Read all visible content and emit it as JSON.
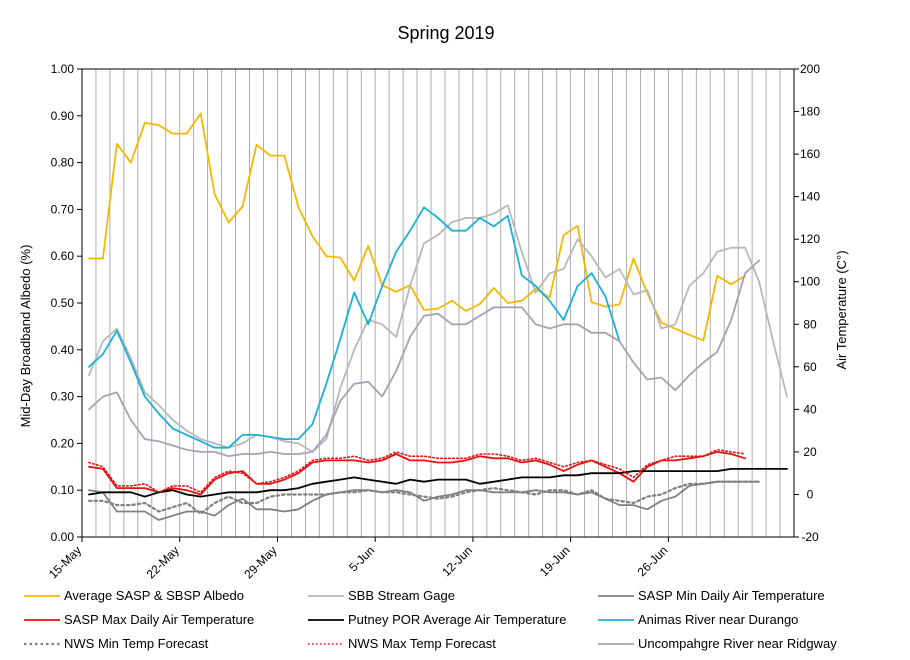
{
  "chart_data": {
    "type": "line",
    "title": "Spring 2019",
    "ylabel_left": "Mid-Day Broadband Albedo (%)",
    "ylabel_right": "Air Temperature (C°)",
    "ylim_left": [
      0,
      1
    ],
    "ylim_right": [
      -20,
      200
    ],
    "yticks_left": [
      "0.00",
      "0.10",
      "0.20",
      "0.30",
      "0.40",
      "0.50",
      "0.60",
      "0.70",
      "0.80",
      "0.90",
      "1.00"
    ],
    "yticks_right": [
      "-20",
      "0",
      "20",
      "40",
      "60",
      "80",
      "100",
      "120",
      "140",
      "160",
      "180",
      "200"
    ],
    "x_start": "15-May",
    "x_days": 51,
    "xtick_labels": [
      "15-May",
      "22-May",
      "29-May",
      "5-Jun",
      "12-Jun",
      "19-Jun",
      "26-Jun"
    ],
    "grid": "vertical",
    "legend_position": "bottom",
    "series": [
      {
        "name": "Average SASP & SBSP Albedo",
        "axis": "left",
        "color": "#f5b800",
        "style": "solid",
        "width": 1.8,
        "values": [
          0.595,
          0.595,
          0.84,
          0.8,
          0.885,
          0.88,
          0.862,
          0.862,
          0.905,
          0.733,
          0.672,
          0.706,
          0.838,
          0.815,
          0.815,
          0.705,
          0.643,
          0.6,
          0.597,
          0.548,
          0.622,
          0.538,
          0.524,
          0.538,
          0.485,
          0.488,
          0.505,
          0.483,
          0.498,
          0.532,
          0.5,
          0.505,
          0.53,
          0.512,
          0.645,
          0.665,
          0.502,
          0.492,
          0.497,
          0.595,
          0.52,
          0.458,
          0.445,
          0.432,
          0.42,
          0.558,
          0.54,
          0.558,
          null,
          null,
          null
        ]
      },
      {
        "name": "SBB Stream Gage",
        "axis": "right",
        "color": "#b8b8b8",
        "style": "solid",
        "width": 1.8,
        "values": [
          56,
          72,
          78,
          64,
          48,
          42,
          35,
          30,
          26,
          24,
          22,
          24,
          28,
          27,
          25,
          24,
          20,
          26,
          50,
          68,
          82,
          80,
          74,
          98,
          118,
          122,
          128,
          130,
          130,
          132,
          136,
          114,
          95,
          104,
          106,
          120,
          112,
          102,
          106,
          94,
          96,
          78,
          80,
          98,
          104,
          114,
          116,
          116,
          100,
          72,
          46
        ]
      },
      {
        "name": "SASP Min Daily Air Temperature",
        "axis": "right",
        "color": "#808080",
        "style": "solid",
        "width": 1.8,
        "values": [
          2,
          1,
          -8,
          -8,
          -8,
          -12,
          -10,
          -8,
          -8,
          -10,
          -5,
          -2,
          -7,
          -7,
          -8,
          -7,
          -3,
          0,
          1,
          2,
          2,
          1,
          2,
          1,
          -3,
          -1,
          0,
          2,
          2,
          1,
          1,
          1,
          2,
          1,
          1,
          0,
          1,
          -2,
          -5,
          -5,
          -7,
          -3,
          -1,
          4,
          5,
          6,
          6,
          6,
          6,
          null,
          null
        ]
      },
      {
        "name": "SASP Max Daily Air Temperature",
        "axis": "right",
        "color": "#e81010",
        "style": "solid",
        "width": 1.8,
        "values": [
          13,
          12,
          3,
          3,
          3,
          1,
          3,
          2,
          0,
          7,
          10,
          11,
          5,
          5,
          7,
          10,
          15,
          16,
          16,
          16,
          15,
          16,
          19,
          16,
          16,
          15,
          15,
          16,
          18,
          17,
          17,
          15,
          16,
          14,
          11,
          14,
          16,
          13,
          10,
          6,
          13,
          16,
          16,
          17,
          18,
          20,
          19,
          17,
          null,
          null,
          null
        ]
      },
      {
        "name": "Putney POR Average Air Temperature",
        "axis": "right",
        "color": "#000000",
        "style": "solid",
        "width": 1.8,
        "values": [
          0,
          1,
          1,
          1,
          -1,
          1,
          2,
          0,
          -1,
          0,
          1,
          1,
          1,
          2,
          2,
          3,
          5,
          6,
          7,
          8,
          7,
          6,
          5,
          7,
          6,
          7,
          7,
          7,
          5,
          6,
          7,
          8,
          8,
          8,
          9,
          9,
          10,
          10,
          10,
          11,
          11,
          11,
          11,
          11,
          11,
          11,
          12,
          12,
          12,
          12,
          12
        ]
      },
      {
        "name": "Animas River near Durango",
        "axis": "right",
        "color": "#1ab0d8",
        "style": "solid",
        "width": 1.8,
        "values": [
          60,
          66,
          77,
          62,
          46,
          38,
          31,
          28,
          25,
          22,
          22,
          28,
          28,
          27,
          26,
          26,
          33,
          52,
          73,
          95,
          80,
          98,
          114,
          124,
          135,
          130,
          124,
          124,
          130,
          126,
          131,
          103,
          98,
          91,
          82,
          98,
          104,
          93,
          72,
          null,
          null,
          null,
          null,
          null,
          null,
          null,
          null,
          null,
          null,
          null,
          null
        ]
      },
      {
        "name": "NWS Min Temp Forecast",
        "axis": "right",
        "color": "#808080",
        "style": "dotted",
        "width": 2.2,
        "values": [
          -3,
          -3,
          -5,
          -5,
          -4,
          -8,
          -6,
          -4,
          -9,
          -4,
          -1,
          -4,
          -4,
          -1,
          0,
          0,
          0,
          0,
          1,
          1,
          2,
          1,
          1,
          0,
          -1,
          -2,
          -1,
          1,
          2,
          3,
          2,
          1,
          0,
          2,
          2,
          0,
          2,
          -2,
          -3,
          -4,
          -1,
          0,
          3,
          5,
          5,
          6,
          6,
          6,
          6,
          null,
          null
        ]
      },
      {
        "name": "NWS Max Temp Forecast",
        "axis": "right",
        "color": "#e81010",
        "style": "dotted",
        "width": 1.6,
        "values": [
          15,
          13,
          4,
          4,
          5,
          1,
          4,
          4,
          1,
          8,
          11,
          10,
          5,
          6,
          8,
          11,
          16,
          17,
          17,
          18,
          16,
          17,
          20,
          18,
          18,
          17,
          17,
          17,
          19,
          19,
          18,
          16,
          17,
          15,
          13,
          15,
          16,
          14,
          12,
          8,
          14,
          16,
          18,
          18,
          18,
          21,
          20,
          19,
          null,
          null,
          null
        ]
      },
      {
        "name": "Uncompahgre River near Ridgway",
        "axis": "right",
        "color": "#a8a0b4",
        "style": "solid",
        "width": 1.8,
        "values": [
          40,
          46,
          48,
          35,
          26,
          25,
          23,
          21,
          20,
          20,
          18,
          19,
          19,
          20,
          19,
          19,
          20,
          28,
          44,
          52,
          53,
          46,
          58,
          74,
          84,
          85,
          80,
          80,
          84,
          88,
          88,
          88,
          80,
          78,
          80,
          80,
          76,
          76,
          72,
          62,
          54,
          55,
          49,
          56,
          62,
          67,
          82,
          104,
          110,
          null,
          null
        ]
      }
    ]
  }
}
